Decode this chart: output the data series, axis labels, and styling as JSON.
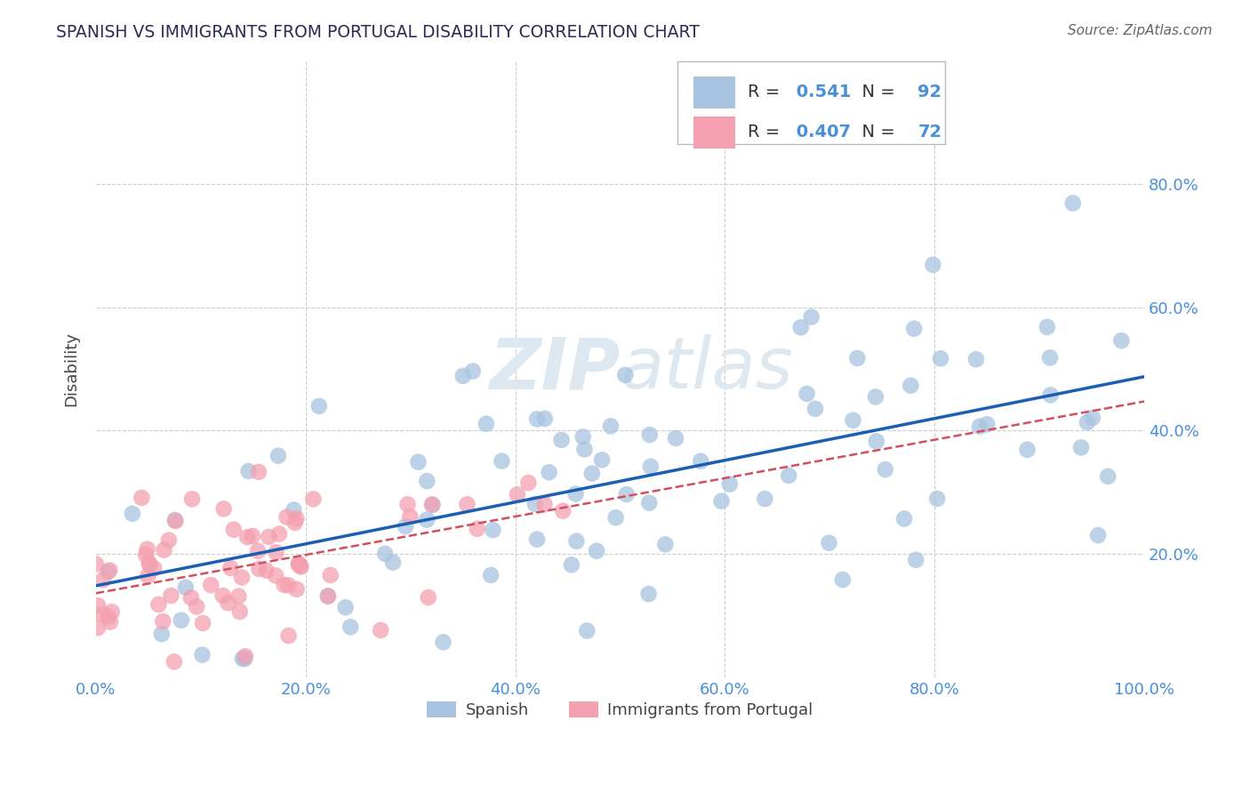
{
  "title": "SPANISH VS IMMIGRANTS FROM PORTUGAL DISABILITY CORRELATION CHART",
  "source": "Source: ZipAtlas.com",
  "ylabel": "Disability",
  "xlim": [
    0.0,
    1.0
  ],
  "ylim": [
    0.0,
    1.0
  ],
  "xtick_labels": [
    "0.0%",
    "20.0%",
    "40.0%",
    "60.0%",
    "80.0%",
    "100.0%"
  ],
  "xtick_vals": [
    0.0,
    0.2,
    0.4,
    0.6,
    0.8,
    1.0
  ],
  "ytick_labels": [
    "20.0%",
    "40.0%",
    "60.0%",
    "80.0%"
  ],
  "ytick_vals": [
    0.2,
    0.4,
    0.6,
    0.8
  ],
  "blue_R": 0.541,
  "blue_N": 92,
  "pink_R": 0.407,
  "pink_N": 72,
  "blue_color": "#a8c4e0",
  "pink_color": "#f4a0b0",
  "blue_line_color": "#1a5fb4",
  "pink_line_color": "#d05060",
  "legend_blue_label": "Spanish",
  "legend_pink_label": "Immigrants from Portugal",
  "title_color": "#2c2c54",
  "axis_label_color": "#4a90d9",
  "grid_color": "#cccccc",
  "background_color": "#ffffff",
  "watermark_color": "#dde8f0"
}
